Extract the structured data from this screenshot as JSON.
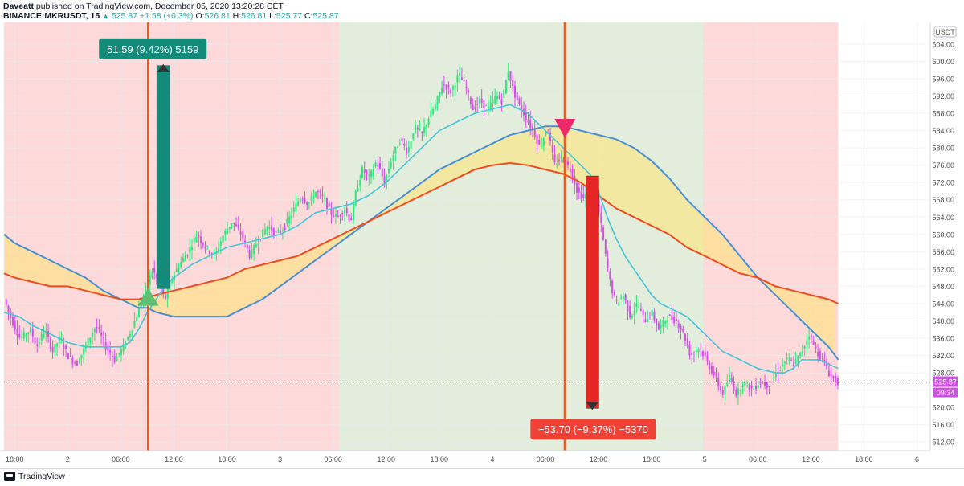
{
  "header": {
    "author": "Daveatt",
    "published_text": "published on TradingView.com, December 05, 2020 13:20:28 CET",
    "symbol": "BINANCE:MKRUSDT, 15",
    "last": "525.87",
    "change": "+1.58 (+0.3%)",
    "o_label": "O:",
    "o_value": "526.81",
    "h_label": "H:",
    "h_value": "526.81",
    "l_label": "L:",
    "l_value": "525.77",
    "c_label": "C:",
    "c_value": "525.87"
  },
  "footer": {
    "logo_text": "TradingView"
  },
  "colors": {
    "up": "#2ee67a",
    "down": "#d24ee8",
    "ma_fast": "#46c4d8",
    "ma_slow": "#ee4b1f",
    "ma_blue": "#4a8fd0",
    "fill": "#ffe372",
    "bg_red": "#fdd9d9",
    "bg_green": "#e2eedb",
    "long_bar": "#138a7a",
    "short_bar": "#e62525",
    "signal": "#ee5a1f"
  },
  "chart_data": {
    "type": "candlestick",
    "symbol": "BINANCE:MKRUSDT",
    "timeframe": "15",
    "currency": "USDT",
    "ylim": [
      510,
      609
    ],
    "y_ticks": [
      "512.00",
      "516.00",
      "520.00",
      "524.00",
      "528.00",
      "532.00",
      "536.00",
      "540.00",
      "544.00",
      "548.00",
      "552.00",
      "556.00",
      "560.00",
      "564.00",
      "568.00",
      "572.00",
      "576.00",
      "580.00",
      "584.00",
      "588.00",
      "592.00",
      "596.00",
      "600.00",
      "604.00"
    ],
    "x_ticks": [
      "18:00",
      "2",
      "06:00",
      "12:00",
      "18:00",
      "3",
      "06:00",
      "12:00",
      "18:00",
      "4",
      "06:00",
      "12:00",
      "18:00",
      "5",
      "06:00",
      "12:00",
      "18:00",
      "6"
    ],
    "x_tick_hours": [
      18,
      24,
      30,
      36,
      42,
      48,
      54,
      60,
      66,
      72,
      78,
      84,
      90,
      96,
      102,
      108,
      114,
      120
    ],
    "x_range_hours": [
      16.8,
      121.5
    ],
    "last_price": "525.87",
    "countdown": "09:34",
    "price_path": [
      [
        16.8,
        545
      ],
      [
        17.5,
        541
      ],
      [
        18.6,
        536
      ],
      [
        19.8,
        538
      ],
      [
        20.5,
        534
      ],
      [
        21.4,
        538
      ],
      [
        22.3,
        533
      ],
      [
        23.1,
        536
      ],
      [
        24,
        532
      ],
      [
        25,
        530
      ],
      [
        26.2,
        535
      ],
      [
        27.2,
        539
      ],
      [
        28.3,
        534
      ],
      [
        29.3,
        531
      ],
      [
        30.3,
        534
      ],
      [
        31.2,
        538
      ],
      [
        32.1,
        543
      ],
      [
        32.9,
        548
      ],
      [
        33.6,
        552
      ],
      [
        34.2,
        549
      ],
      [
        35,
        545
      ],
      [
        35.8,
        550
      ],
      [
        36.6,
        553
      ],
      [
        37.6,
        556
      ],
      [
        38.6,
        560
      ],
      [
        39.6,
        557
      ],
      [
        40.6,
        555
      ],
      [
        41.6,
        560
      ],
      [
        42.6,
        563
      ],
      [
        43.6,
        560
      ],
      [
        44.6,
        555
      ],
      [
        45.6,
        559
      ],
      [
        46.6,
        562
      ],
      [
        47.6,
        560
      ],
      [
        48.6,
        562
      ],
      [
        49.6,
        566
      ],
      [
        50.4,
        569
      ],
      [
        51.2,
        567
      ],
      [
        52.1,
        570
      ],
      [
        53,
        568
      ],
      [
        53.7,
        565
      ],
      [
        54.5,
        564
      ],
      [
        55.3,
        566
      ],
      [
        56,
        563
      ],
      [
        56.6,
        570
      ],
      [
        57.3,
        575
      ],
      [
        58.1,
        573
      ],
      [
        58.9,
        577
      ],
      [
        59.8,
        572
      ],
      [
        60.7,
        578
      ],
      [
        61.6,
        582
      ],
      [
        62.4,
        579
      ],
      [
        63.2,
        585
      ],
      [
        64,
        583
      ],
      [
        64.8,
        587
      ],
      [
        65.6,
        590
      ],
      [
        66.4,
        595
      ],
      [
        67.3,
        593
      ],
      [
        68.2,
        597
      ],
      [
        69,
        594
      ],
      [
        69.8,
        589
      ],
      [
        70.6,
        591
      ],
      [
        71.5,
        589
      ],
      [
        72.4,
        592
      ],
      [
        73.1,
        591
      ],
      [
        73.8,
        598
      ],
      [
        74.4,
        593
      ],
      [
        75,
        590
      ],
      [
        75.8,
        587
      ],
      [
        76.6,
        584
      ],
      [
        77.4,
        580
      ],
      [
        78.2,
        585
      ],
      [
        79,
        576
      ],
      [
        79.8,
        578
      ],
      [
        80.8,
        575
      ],
      [
        81.6,
        570
      ],
      [
        82.4,
        568
      ],
      [
        83.2,
        574
      ],
      [
        83.8,
        568
      ],
      [
        84.3,
        562
      ],
      [
        84.8,
        555
      ],
      [
        85.4,
        548
      ],
      [
        86,
        544
      ],
      [
        86.8,
        546
      ],
      [
        87.6,
        541
      ],
      [
        88.4,
        544
      ],
      [
        89.2,
        540
      ],
      [
        90,
        542
      ],
      [
        90.8,
        538
      ],
      [
        91.8,
        541
      ],
      [
        92.8,
        540
      ],
      [
        93.6,
        537
      ],
      [
        94.4,
        532
      ],
      [
        95.4,
        534
      ],
      [
        96.4,
        530
      ],
      [
        97.2,
        527
      ],
      [
        98,
        523
      ],
      [
        98.8,
        527
      ],
      [
        99.6,
        523
      ],
      [
        100.4,
        526
      ],
      [
        101.4,
        524
      ],
      [
        102.2,
        526
      ],
      [
        103.2,
        525
      ],
      [
        104.1,
        528
      ],
      [
        105.2,
        531
      ],
      [
        106.1,
        530
      ],
      [
        107,
        533
      ],
      [
        107.8,
        537
      ],
      [
        108.6,
        533
      ],
      [
        109.4,
        531
      ],
      [
        110,
        528
      ],
      [
        110.6,
        526.5
      ],
      [
        111.1,
        525.87
      ]
    ],
    "ma_fast_path": [
      [
        16.8,
        542
      ],
      [
        18.5,
        541
      ],
      [
        20,
        539
      ],
      [
        22,
        537
      ],
      [
        24,
        535
      ],
      [
        26,
        534
      ],
      [
        28,
        534
      ],
      [
        30,
        534
      ],
      [
        31,
        535
      ],
      [
        32,
        538
      ],
      [
        33,
        542
      ],
      [
        34,
        545
      ],
      [
        35,
        548
      ],
      [
        36,
        550
      ],
      [
        38,
        553
      ],
      [
        40,
        555
      ],
      [
        42,
        557
      ],
      [
        44,
        558
      ],
      [
        46,
        559
      ],
      [
        48,
        560
      ],
      [
        50,
        562
      ],
      [
        52,
        565
      ],
      [
        54,
        566
      ],
      [
        56,
        567
      ],
      [
        58,
        569
      ],
      [
        60,
        572
      ],
      [
        62,
        576
      ],
      [
        64,
        580
      ],
      [
        66,
        584
      ],
      [
        68,
        586
      ],
      [
        70,
        588
      ],
      [
        72,
        589
      ],
      [
        74,
        590
      ],
      [
        76,
        588
      ],
      [
        78,
        584
      ],
      [
        80,
        580
      ],
      [
        82,
        576
      ],
      [
        83,
        574
      ],
      [
        84,
        570
      ],
      [
        85,
        564
      ],
      [
        86,
        559
      ],
      [
        87,
        555
      ],
      [
        88,
        552
      ],
      [
        89,
        549
      ],
      [
        90,
        546
      ],
      [
        91,
        544
      ],
      [
        92,
        543
      ],
      [
        93,
        542
      ],
      [
        94,
        541
      ],
      [
        95,
        539
      ],
      [
        96,
        537
      ],
      [
        97,
        535
      ],
      [
        98,
        533
      ],
      [
        100,
        531
      ],
      [
        102,
        529
      ],
      [
        104,
        528
      ],
      [
        105,
        528
      ],
      [
        106,
        529
      ],
      [
        107,
        531
      ],
      [
        108,
        531
      ],
      [
        109,
        531
      ],
      [
        110,
        530
      ],
      [
        111.1,
        529
      ]
    ],
    "ma_slow_path": [
      [
        16.8,
        551
      ],
      [
        18,
        550
      ],
      [
        20,
        549
      ],
      [
        22,
        548
      ],
      [
        24,
        548
      ],
      [
        26,
        547
      ],
      [
        28,
        546
      ],
      [
        30,
        545
      ],
      [
        32,
        545
      ],
      [
        34,
        546
      ],
      [
        36,
        547
      ],
      [
        38,
        548
      ],
      [
        40,
        549
      ],
      [
        42,
        550
      ],
      [
        44,
        552
      ],
      [
        46,
        553
      ],
      [
        48,
        554
      ],
      [
        50,
        555
      ],
      [
        52,
        557
      ],
      [
        54,
        559
      ],
      [
        56,
        561
      ],
      [
        58,
        563
      ],
      [
        60,
        565
      ],
      [
        62,
        567
      ],
      [
        64,
        569
      ],
      [
        66,
        571
      ],
      [
        68,
        573
      ],
      [
        70,
        575
      ],
      [
        72,
        576
      ],
      [
        74,
        576.5
      ],
      [
        76,
        576
      ],
      [
        78,
        575
      ],
      [
        80,
        574
      ],
      [
        82,
        572
      ],
      [
        84,
        569
      ],
      [
        86,
        566
      ],
      [
        88,
        564
      ],
      [
        90,
        562
      ],
      [
        92,
        560
      ],
      [
        94,
        557
      ],
      [
        96,
        555
      ],
      [
        98,
        553
      ],
      [
        100,
        551
      ],
      [
        102,
        550
      ],
      [
        104,
        548
      ],
      [
        106,
        547
      ],
      [
        108,
        546
      ],
      [
        110,
        545
      ],
      [
        111.1,
        544
      ]
    ],
    "ma_blue_path": [
      [
        16.8,
        560
      ],
      [
        18,
        558
      ],
      [
        20,
        556
      ],
      [
        22,
        554
      ],
      [
        24,
        552
      ],
      [
        26,
        550
      ],
      [
        28,
        547
      ],
      [
        30,
        545
      ],
      [
        32,
        543
      ],
      [
        33,
        543
      ],
      [
        34,
        542
      ],
      [
        36,
        541
      ],
      [
        38,
        541
      ],
      [
        40,
        541
      ],
      [
        42,
        541
      ],
      [
        44,
        543
      ],
      [
        46,
        545
      ],
      [
        48,
        548
      ],
      [
        50,
        551
      ],
      [
        52,
        554
      ],
      [
        54,
        557
      ],
      [
        56,
        560
      ],
      [
        58,
        563
      ],
      [
        60,
        566
      ],
      [
        62,
        569
      ],
      [
        64,
        572
      ],
      [
        66,
        575
      ],
      [
        68,
        577
      ],
      [
        70,
        579
      ],
      [
        72,
        581
      ],
      [
        74,
        583
      ],
      [
        76,
        584
      ],
      [
        78,
        585
      ],
      [
        80,
        585
      ],
      [
        82,
        584
      ],
      [
        84,
        583
      ],
      [
        86,
        582
      ],
      [
        88,
        580
      ],
      [
        90,
        577
      ],
      [
        92,
        573
      ],
      [
        94,
        568
      ],
      [
        96,
        564
      ],
      [
        98,
        560
      ],
      [
        100,
        555
      ],
      [
        102,
        550
      ],
      [
        104,
        546
      ],
      [
        106,
        542
      ],
      [
        108,
        538
      ],
      [
        110,
        534
      ],
      [
        111.1,
        531
      ]
    ],
    "background_zones": [
      {
        "from": 16.8,
        "to": 54.7,
        "state": "bearish"
      },
      {
        "from": 54.7,
        "to": 95.8,
        "state": "bullish"
      },
      {
        "from": 95.8,
        "to": 111.1,
        "state": "bearish"
      }
    ],
    "signals": [
      {
        "type": "long",
        "time_h": 33.1,
        "price": 545
      },
      {
        "type": "short",
        "time_h": 80.2,
        "price": 583
      }
    ],
    "annotations": [
      {
        "type": "gain",
        "label": "51.59 (9.42%) 5159",
        "time_h": 34.8,
        "from": 547.5,
        "to": 599
      },
      {
        "type": "loss",
        "label": "−53.70 (−9.37%) −5370",
        "time_h": 83.3,
        "from": 573.5,
        "to": 519.8
      }
    ]
  }
}
